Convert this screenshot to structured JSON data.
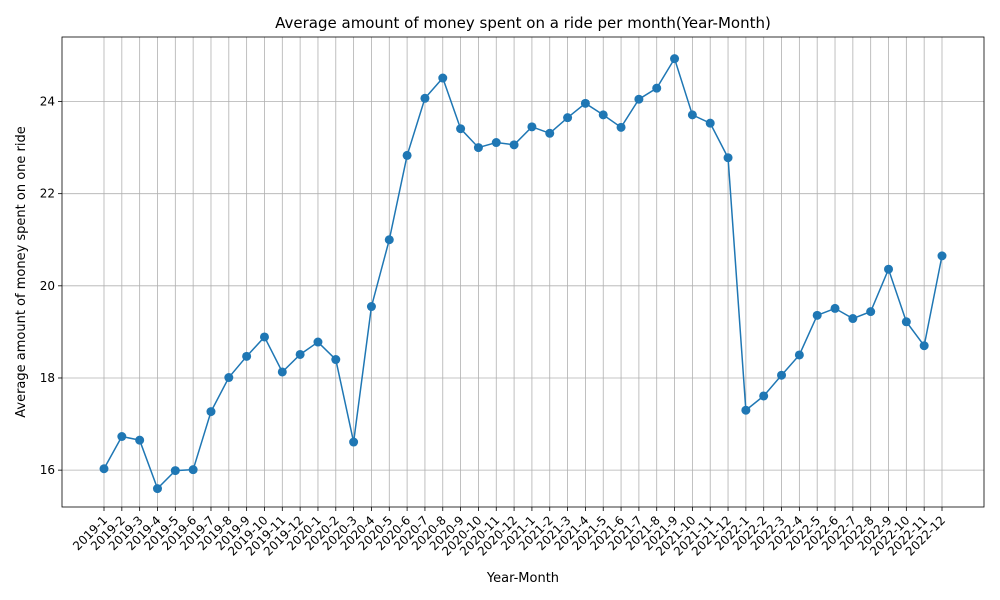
{
  "chart_data": {
    "type": "line",
    "title": "Average amount of money spent on a ride per month(Year-Month)",
    "xlabel": "Year-Month",
    "ylabel": "Average amount of money spent on one ride",
    "grid": true,
    "color": "#1f77b4",
    "ylim": [
      15.2,
      25.4
    ],
    "yticks": [
      16,
      18,
      20,
      22,
      24
    ],
    "categories": [
      "2019-1",
      "2019-2",
      "2019-3",
      "2019-4",
      "2019-5",
      "2019-6",
      "2019-7",
      "2019-8",
      "2019-9",
      "2019-10",
      "2019-11",
      "2019-12",
      "2020-1",
      "2020-2",
      "2020-3",
      "2020-4",
      "2020-5",
      "2020-6",
      "2020-7",
      "2020-8",
      "2020-9",
      "2020-10",
      "2020-11",
      "2020-12",
      "2021-1",
      "2021-2",
      "2021-3",
      "2021-4",
      "2021-5",
      "2021-6",
      "2021-7",
      "2021-8",
      "2021-9",
      "2021-10",
      "2021-11",
      "2021-12",
      "2022-1",
      "2022-2",
      "2022-3",
      "2022-4",
      "2022-5",
      "2022-6",
      "2022-7",
      "2022-8",
      "2022-9",
      "2022-10",
      "2022-11",
      "2022-12"
    ],
    "values": [
      16.03,
      16.73,
      16.65,
      15.6,
      15.99,
      16.01,
      17.27,
      18.01,
      18.47,
      18.89,
      18.13,
      18.51,
      18.78,
      18.4,
      16.61,
      19.55,
      21.0,
      22.83,
      24.07,
      24.51,
      23.41,
      23.0,
      23.11,
      23.06,
      23.45,
      23.31,
      23.65,
      23.96,
      23.71,
      23.44,
      24.05,
      24.29,
      24.93,
      23.71,
      23.53,
      22.78,
      17.3,
      17.61,
      18.06,
      18.5,
      19.36,
      19.51,
      19.29,
      19.44,
      20.36,
      19.22,
      18.7,
      20.65
    ]
  }
}
